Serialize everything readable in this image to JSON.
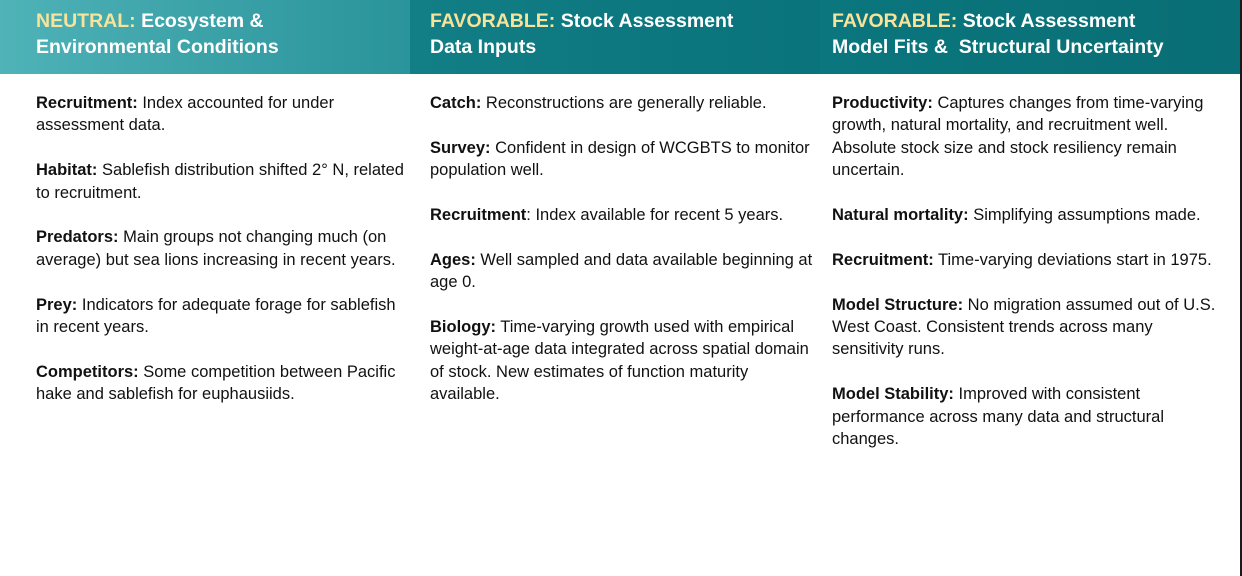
{
  "columns": [
    {
      "status": "NEUTRAL:",
      "title_line1": "Ecosystem &",
      "title_line2": "Environmental Conditions",
      "items": [
        {
          "term": "Recruitment:",
          "text": " Index accounted for under assessment data."
        },
        {
          "term": "Habitat:",
          "text": " Sablefish distribution shifted 2° N, related to recruitment."
        },
        {
          "term": "Predators:",
          "text": " Main groups not changing much (on average) but sea lions increasing in recent years."
        },
        {
          "term": "Prey:",
          "text": " Indicators for adequate forage for sablefish in recent years."
        },
        {
          "term": "Competitors:",
          "text": " Some competition between Pacific hake and sablefish for euphausiids."
        }
      ]
    },
    {
      "status": "FAVORABLE:",
      "title_line1": "Stock Assessment",
      "title_line2": "Data Inputs",
      "items": [
        {
          "term": "Catch:",
          "text": " Reconstructions are generally reliable."
        },
        {
          "term": "Survey:",
          "text": " Confident in design of WCGBTS to monitor population well."
        },
        {
          "term": "Recruitment",
          "text": ": Index available for recent 5 years."
        },
        {
          "term": "Ages:",
          "text": " Well sampled and data available beginning at age 0."
        },
        {
          "term": "Biology:",
          "text": " Time-varying growth used with empirical weight-at-age data integrated across spatial domain of stock. New estimates of function maturity available."
        }
      ]
    },
    {
      "status": "FAVORABLE:",
      "title_line1": "Stock Assessment",
      "title_line2": "Model Fits &  Structural Uncertainty",
      "items": [
        {
          "term": "Productivity:",
          "text": " Captures changes from time-varying growth, natural mortality, and recruitment well. Absolute stock size and stock resiliency remain uncertain."
        },
        {
          "term": "Natural mortality:",
          "text": " Simplifying assumptions made."
        },
        {
          "term": "Recruitment:",
          "text": " Time-varying deviations start in 1975."
        },
        {
          "term": "Model Structure:",
          "text": " No migration assumed out of U.S. West Coast. Consistent trends across many sensitivity runs."
        },
        {
          "term": "Model Stability:",
          "text": " Improved with consistent performance across many data and structural changes."
        }
      ]
    }
  ]
}
